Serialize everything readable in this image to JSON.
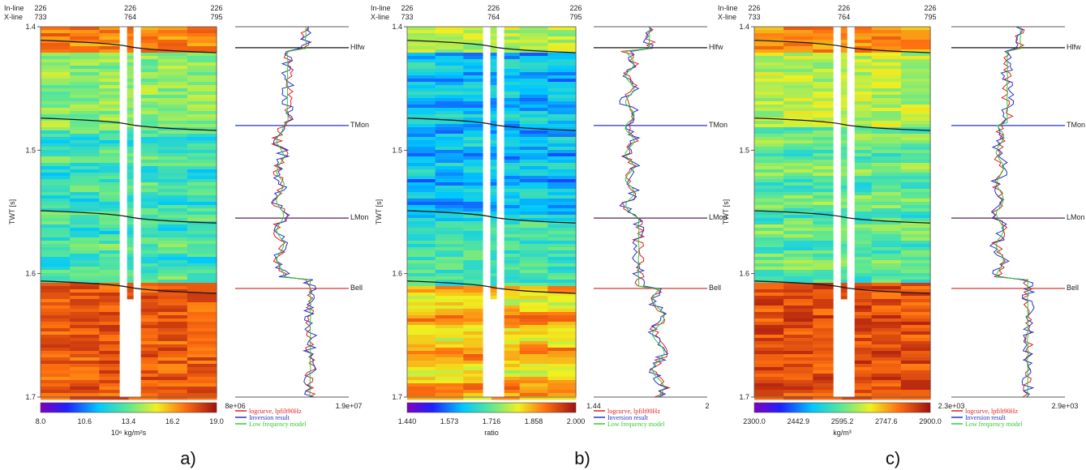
{
  "figure": {
    "panel_labels": [
      "a)",
      "b)",
      "c)"
    ],
    "header_labels": {
      "inline": "In-line",
      "xline": "X-line"
    },
    "trace_headers": [
      {
        "inline": "226",
        "xline": "733"
      },
      {
        "inline": "226",
        "xline": "764"
      },
      {
        "inline": "226",
        "xline": "795"
      }
    ],
    "twt_axis": {
      "label": "TWT [s]",
      "ticks": [
        "1.4",
        "1.5",
        "1.6",
        "1.7"
      ],
      "range": [
        1.4,
        1.7
      ]
    },
    "horizons": [
      "Hlfw",
      "TMon",
      "LMon",
      "Bell"
    ],
    "legend": [
      {
        "label": "logcurve, lpfilt90Hz",
        "color": "#e32020"
      },
      {
        "label": "Inversion result",
        "color": "#2233cc"
      },
      {
        "label": "Low frequency model",
        "color": "#33cc33"
      }
    ]
  },
  "chart_data": [
    {
      "type": "heatmap",
      "panel": "a)",
      "colorbar": {
        "ticks": [
          "8.0",
          "10.6",
          "13.4",
          "16.2",
          "19.0"
        ],
        "range": [
          8.0,
          19.0
        ],
        "unit": "10⁶ kg/m²s"
      },
      "log_track": {
        "xmin_label": "8e+06",
        "xmax_label": "1.9e+07"
      }
    },
    {
      "type": "heatmap",
      "panel": "b)",
      "colorbar": {
        "ticks": [
          "1.440",
          "1.573",
          "1.716",
          "1.858",
          "2.000"
        ],
        "range": [
          1.44,
          2.0
        ],
        "unit": "ratio"
      },
      "log_track": {
        "xmin_label": "1.44",
        "xmax_label": "2"
      }
    },
    {
      "type": "heatmap",
      "panel": "c)",
      "colorbar": {
        "ticks": [
          "2300.0",
          "2442.9",
          "2595.2",
          "2747.6",
          "2900.0"
        ],
        "range": [
          2300.0,
          2900.0
        ],
        "unit": "kg/m³"
      },
      "log_track": {
        "xmin_label": "2.3e+03",
        "xmax_label": "2.9e+03"
      }
    }
  ]
}
